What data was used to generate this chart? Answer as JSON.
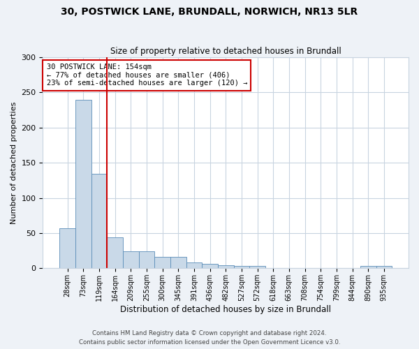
{
  "title_line1": "30, POSTWICK LANE, BRUNDALL, NORWICH, NR13 5LR",
  "title_line2": "Size of property relative to detached houses in Brundall",
  "xlabel": "Distribution of detached houses by size in Brundall",
  "ylabel": "Number of detached properties",
  "bar_labels": [
    "28sqm",
    "73sqm",
    "119sqm",
    "164sqm",
    "209sqm",
    "255sqm",
    "300sqm",
    "345sqm",
    "391sqm",
    "436sqm",
    "482sqm",
    "527sqm",
    "572sqm",
    "618sqm",
    "663sqm",
    "708sqm",
    "754sqm",
    "799sqm",
    "844sqm",
    "890sqm",
    "935sqm"
  ],
  "bar_values": [
    57,
    240,
    134,
    44,
    24,
    24,
    16,
    16,
    8,
    6,
    4,
    3,
    3,
    0,
    0,
    0,
    0,
    0,
    0,
    3,
    3
  ],
  "bar_color": "#c9d9e8",
  "bar_edge_color": "#5b8db8",
  "vline_x": 2.5,
  "vline_color": "#cc0000",
  "annotation_text": "30 POSTWICK LANE: 154sqm\n← 77% of detached houses are smaller (406)\n23% of semi-detached houses are larger (120) →",
  "annotation_box_color": "white",
  "annotation_box_edge": "#cc0000",
  "ylim": [
    0,
    300
  ],
  "yticks": [
    0,
    50,
    100,
    150,
    200,
    250,
    300
  ],
  "footer_line1": "Contains HM Land Registry data © Crown copyright and database right 2024.",
  "footer_line2": "Contains public sector information licensed under the Open Government Licence v3.0.",
  "background_color": "#eef2f7",
  "plot_bg_color": "#ffffff",
  "grid_color": "#c8d4e0"
}
